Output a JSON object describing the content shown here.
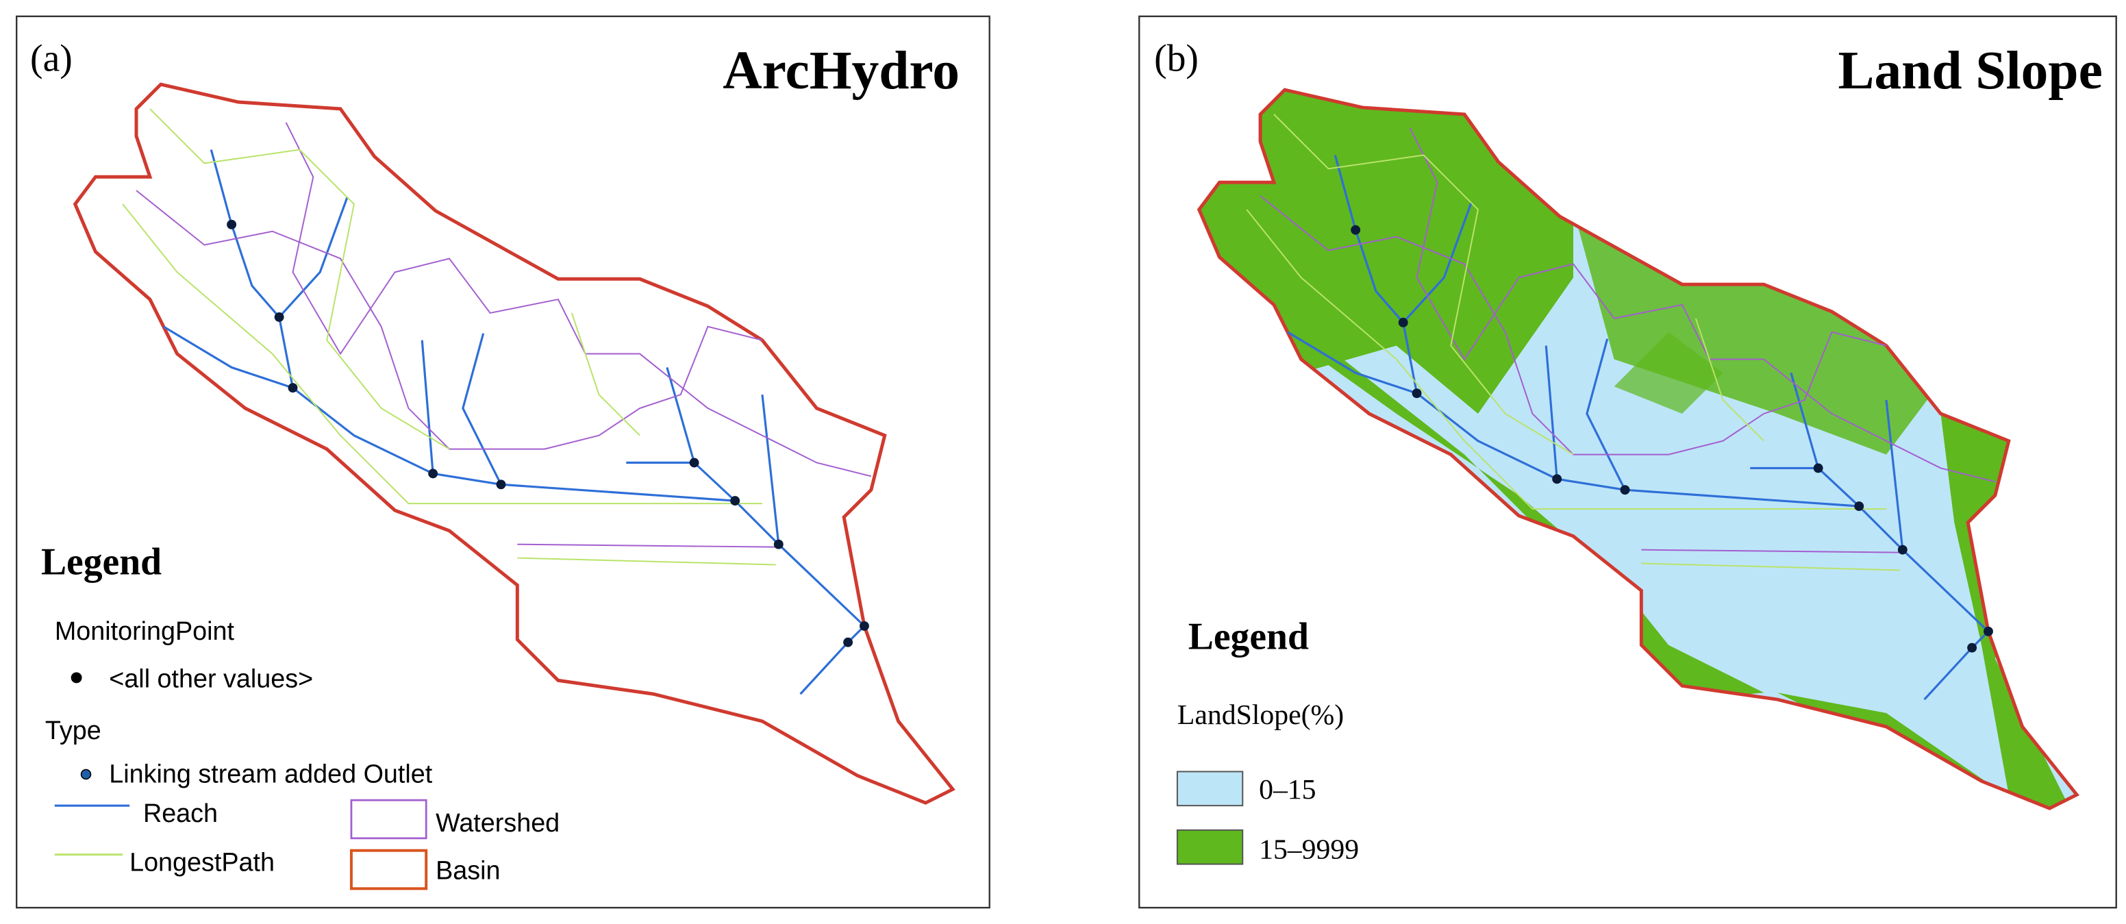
{
  "panels": [
    {
      "label": "(a)",
      "title": "ArcHydro",
      "legend": {
        "title": "Legend",
        "groups": [
          {
            "heading": "MonitoringPoint",
            "items": [
              "<all other values>"
            ]
          },
          {
            "heading": "Type",
            "items": [
              "Linking stream added Outlet"
            ]
          }
        ],
        "layers": [
          "Reach",
          "LongestPath",
          "Watershed",
          "Basin"
        ]
      }
    },
    {
      "label": "(b)",
      "title": "Land Slope",
      "legend": {
        "title": "Legend",
        "heading": "LandSlope(%)",
        "classes": [
          "0–15",
          "15–9999"
        ]
      }
    }
  ]
}
